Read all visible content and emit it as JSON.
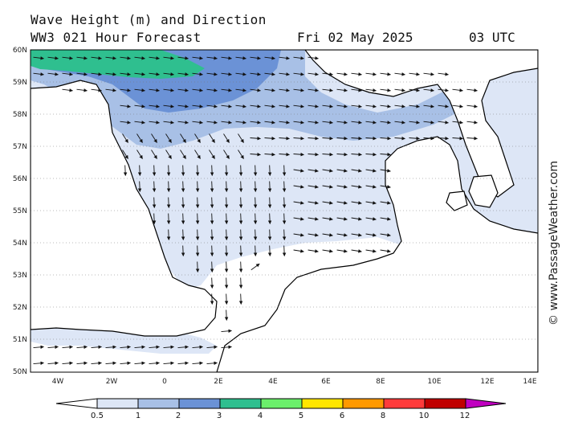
{
  "header": {
    "title": "Wave Height (m) and Direction",
    "model_line": "WW3 021 Hour Forecast",
    "date": "Fri 02 May 2025",
    "time": "03 UTC"
  },
  "map": {
    "lat_labels": [
      "60N",
      "59N",
      "58N",
      "57N",
      "56N",
      "55N",
      "54N",
      "53N",
      "52N",
      "51N",
      "50N"
    ],
    "lon_labels": [
      "4W",
      "2W",
      "0",
      "2E",
      "4E",
      "6E",
      "8E",
      "10E",
      "12E",
      "14E"
    ],
    "land_color": "#ffffff",
    "arrow_color": "#111111"
  },
  "credit": "© www.PassageWeather.com",
  "legend": {
    "ticks": [
      "0.5",
      "1",
      "2",
      "3",
      "4",
      "5",
      "6",
      "8",
      "10",
      "12"
    ],
    "colors": [
      "#dde6f6",
      "#a8c0e6",
      "#6b92d6",
      "#2fbf8f",
      "#6bef6b",
      "#ffe600",
      "#ff9900",
      "#ff3b3b",
      "#c00000",
      "#c000c0"
    ]
  }
}
